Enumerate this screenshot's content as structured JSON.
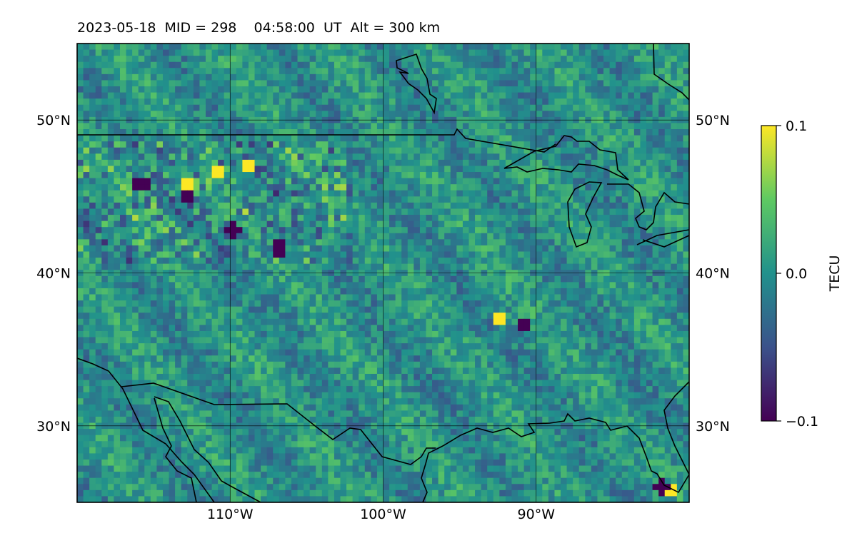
{
  "chart_data": {
    "type": "heatmap",
    "title": "2023-05-18  MID = 298    04:58:00  UT  Alt = 300 km",
    "projection": "equirectangular",
    "lon_range": [
      -120,
      -80
    ],
    "lat_range": [
      25,
      55
    ],
    "x_ticks": [
      -110,
      -100,
      -90
    ],
    "x_tick_labels": [
      "110°W",
      "100°W",
      "90°W"
    ],
    "y_ticks": [
      30,
      40,
      50
    ],
    "y_tick_labels": [
      "30°N",
      "40°N",
      "50°N"
    ],
    "grid": true,
    "colormap": "viridis",
    "colorbar": {
      "label": "TECU",
      "range": [
        -0.1,
        0.1
      ],
      "ticks": [
        -0.1,
        0.0,
        0.1
      ],
      "tick_labels": [
        "−0.1",
        "0.0",
        "0.1"
      ],
      "placement": "right"
    },
    "field": {
      "description_of_values": "differential TEC, mostly near 0 TECU with small-scale noise",
      "hotspots": [
        {
          "lon": -113,
          "lat": 46.0,
          "value": 0.1
        },
        {
          "lon": -111,
          "lat": 46.8,
          "value": 0.1
        },
        {
          "lon": -109,
          "lat": 47.2,
          "value": 0.1
        },
        {
          "lon": -116,
          "lat": 46.0,
          "value": -0.1
        },
        {
          "lon": -113,
          "lat": 45.2,
          "value": -0.1
        },
        {
          "lon": -110,
          "lat": 43.0,
          "value": -0.1
        },
        {
          "lon": -107,
          "lat": 41.8,
          "value": -0.1
        },
        {
          "lon": -92.5,
          "lat": 37.2,
          "value": 0.1
        },
        {
          "lon": -91,
          "lat": 36.8,
          "value": -0.1
        },
        {
          "lon": -81.5,
          "lat": 26.0,
          "value": 0.1
        },
        {
          "lon": -82,
          "lat": 26.2,
          "value": -0.1
        }
      ]
    }
  }
}
